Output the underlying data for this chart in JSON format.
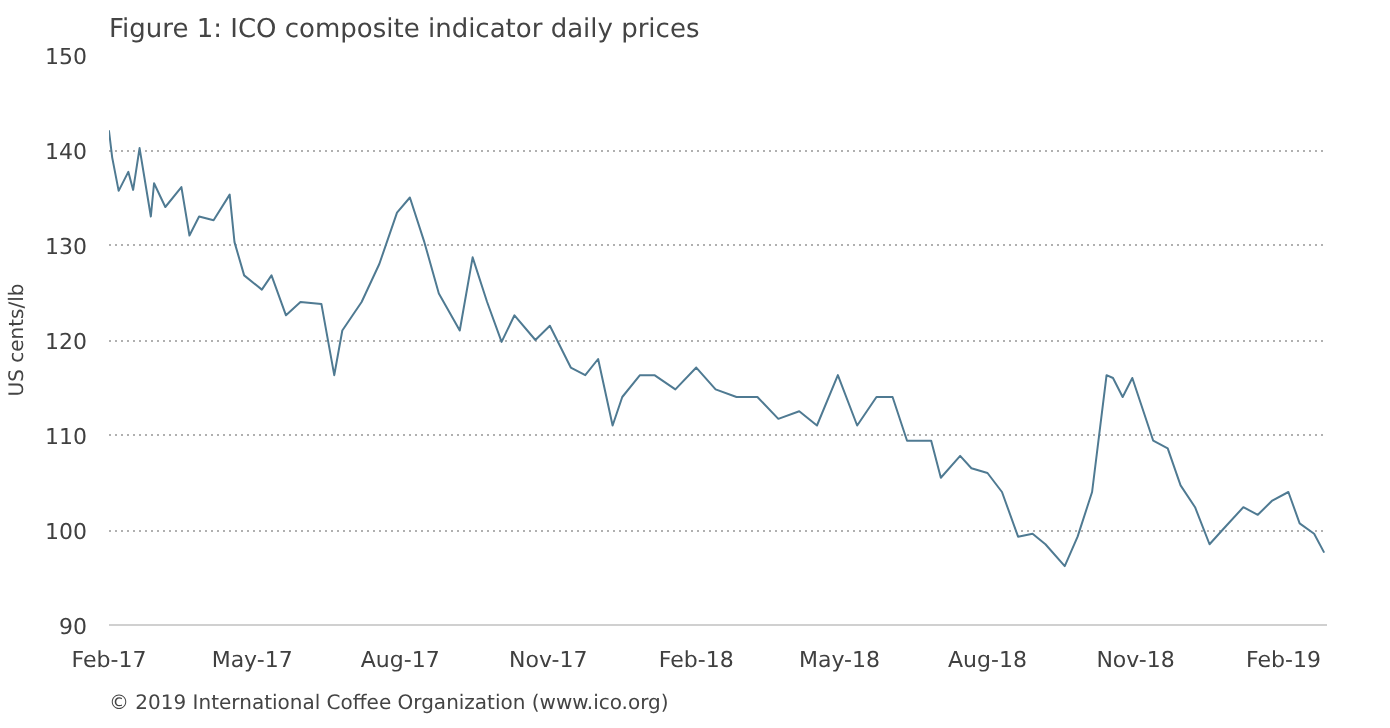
{
  "chart_data": {
    "type": "line",
    "title": "Figure 1: ICO composite indicator daily prices",
    "ylabel": "US cents/lb",
    "annotations": [
      "© 2019 International Coffee Organization (www.ico.org)"
    ],
    "x": [
      "2017-02-01",
      "2017-02-03",
      "2017-02-07",
      "2017-02-13",
      "2017-02-16",
      "2017-02-20",
      "2017-02-27",
      "2017-03-01",
      "2017-03-08",
      "2017-03-18",
      "2017-03-23",
      "2017-03-29",
      "2017-04-07",
      "2017-04-17",
      "2017-04-20",
      "2017-04-26",
      "2017-05-07",
      "2017-05-13",
      "2017-05-22",
      "2017-05-31",
      "2017-06-13",
      "2017-06-21",
      "2017-06-26",
      "2017-07-08",
      "2017-07-19",
      "2017-07-30",
      "2017-08-07",
      "2017-08-16",
      "2017-08-25",
      "2017-09-07",
      "2017-09-15",
      "2017-09-24",
      "2017-10-03",
      "2017-10-11",
      "2017-10-24",
      "2017-11-02",
      "2017-11-15",
      "2017-11-24",
      "2017-12-02",
      "2017-12-11",
      "2017-12-17",
      "2017-12-28",
      "2018-01-06",
      "2018-01-19",
      "2018-02-01",
      "2018-02-13",
      "2018-02-26",
      "2018-03-11",
      "2018-03-24",
      "2018-04-06",
      "2018-04-17",
      "2018-04-30",
      "2018-05-12",
      "2018-05-24",
      "2018-06-03",
      "2018-06-12",
      "2018-06-27",
      "2018-07-03",
      "2018-07-15",
      "2018-07-22",
      "2018-08-01",
      "2018-08-10",
      "2018-08-20",
      "2018-08-29",
      "2018-09-06",
      "2018-09-18",
      "2018-09-26",
      "2018-10-05",
      "2018-10-14",
      "2018-10-18",
      "2018-10-24",
      "2018-10-30",
      "2018-11-12",
      "2018-11-21",
      "2018-11-29",
      "2018-12-08",
      "2018-12-17",
      "2018-12-25",
      "2019-01-07",
      "2019-01-16",
      "2019-01-25",
      "2019-02-04",
      "2019-02-11",
      "2019-02-20",
      "2019-02-26"
    ],
    "series": [
      {
        "color": "#4f7a92",
        "values": [
          142,
          139.2,
          135.7,
          137.7,
          135.8,
          140.2,
          133,
          136.5,
          134,
          136.1,
          131,
          133,
          132.6,
          135.3,
          130.3,
          126.8,
          125.3,
          126.8,
          122.6,
          124,
          123.8,
          116.3,
          121,
          124,
          128,
          133.4,
          135,
          130.3,
          124.9,
          121,
          128.7,
          124,
          119.8,
          122.6,
          120,
          121.5,
          117.1,
          116.3,
          118,
          111,
          114,
          116.3,
          116.3,
          114.8,
          117.1,
          114.8,
          114,
          114,
          111.7,
          112.5,
          111,
          116.3,
          111,
          114,
          114,
          109.4,
          109.4,
          105.5,
          107.8,
          106.5,
          106,
          104,
          99.3,
          99.6,
          98.5,
          96.2,
          99.3,
          104,
          116.3,
          116,
          114,
          116,
          109.4,
          108.6,
          104.7,
          102.4,
          98.5,
          100,
          102.4,
          101.6,
          103.1,
          104,
          100.7,
          99.6,
          97.7
        ]
      }
    ],
    "xlim": [
      "2017-02-01",
      "2019-02-28"
    ],
    "xticks": [
      {
        "value": "2017-02-01",
        "label": "Feb-17"
      },
      {
        "value": "2017-05-01",
        "label": "May-17"
      },
      {
        "value": "2017-08-01",
        "label": "Aug-17"
      },
      {
        "value": "2017-11-01",
        "label": "Nov-17"
      },
      {
        "value": "2018-02-01",
        "label": "Feb-18"
      },
      {
        "value": "2018-05-01",
        "label": "May-18"
      },
      {
        "value": "2018-08-01",
        "label": "Aug-18"
      },
      {
        "value": "2018-11-01",
        "label": "Nov-18"
      },
      {
        "value": "2019-02-01",
        "label": "Feb-19"
      }
    ],
    "ylim": [
      90,
      150
    ],
    "yticks": [
      90,
      100,
      110,
      120,
      130,
      140,
      150
    ],
    "grid": "y",
    "line_style": "solid"
  }
}
